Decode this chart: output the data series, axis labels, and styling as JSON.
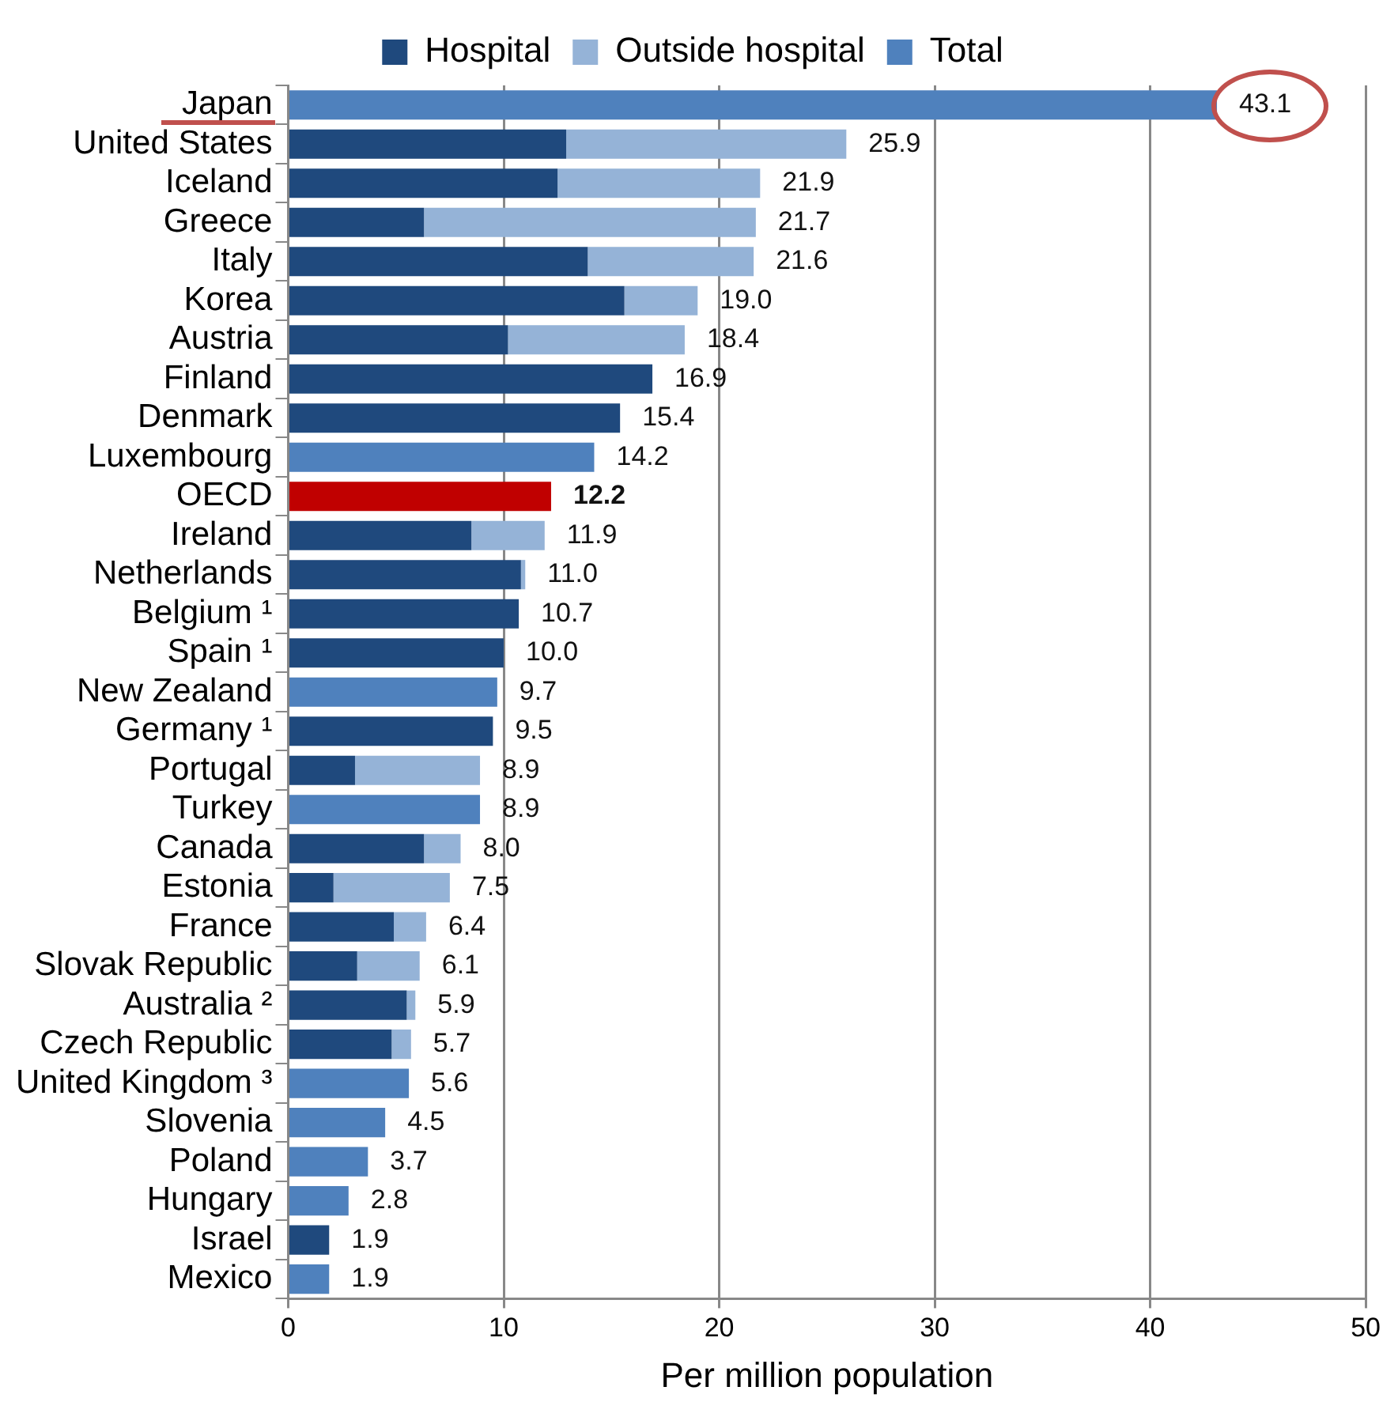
{
  "chart_data": {
    "type": "bar",
    "orientation": "horizontal",
    "stacked": true,
    "xlabel": "Per million population",
    "categories": [
      "Japan",
      "United States",
      "Iceland",
      "Greece",
      "Italy",
      "Korea",
      "Austria",
      "Finland",
      "Denmark",
      "Luxembourg",
      "OECD",
      "Ireland",
      "Netherlands",
      "Belgium ¹",
      "Spain ¹",
      "New Zealand",
      "Germany ¹",
      "Portugal",
      "Turkey",
      "Canada",
      "Estonia",
      "France",
      "Slovak Republic",
      "Australia ²",
      "Czech Republic",
      "United Kingdom ³",
      "Slovenia",
      "Poland",
      "Hungary",
      "Israel",
      "Mexico"
    ],
    "series": [
      {
        "name": "Hospital",
        "color": "#1f497d",
        "values": [
          null,
          12.9,
          12.5,
          6.3,
          13.9,
          15.6,
          10.2,
          16.9,
          15.4,
          null,
          null,
          8.5,
          10.8,
          10.7,
          10.0,
          null,
          9.5,
          3.1,
          null,
          6.3,
          2.1,
          4.9,
          3.2,
          5.5,
          4.8,
          null,
          null,
          null,
          null,
          1.9,
          null
        ]
      },
      {
        "name": "Outside hospital",
        "color": "#95b3d7",
        "values": [
          null,
          13.0,
          9.4,
          15.4,
          7.7,
          3.4,
          8.2,
          null,
          null,
          null,
          null,
          3.4,
          0.2,
          null,
          null,
          null,
          null,
          5.8,
          null,
          1.7,
          5.4,
          1.5,
          2.9,
          0.4,
          0.9,
          null,
          null,
          null,
          null,
          null,
          null
        ]
      },
      {
        "name": "Total",
        "color": "#4f81bd",
        "colors": [
          "#4f81bd",
          "#4f81bd",
          "#4f81bd",
          "#4f81bd",
          "#4f81bd",
          "#4f81bd",
          "#4f81bd",
          "#4f81bd",
          "#4f81bd",
          "#4f81bd",
          "#c00000",
          "#4f81bd",
          "#4f81bd",
          "#4f81bd",
          "#4f81bd",
          "#4f81bd",
          "#4f81bd",
          "#4f81bd",
          "#4f81bd",
          "#4f81bd",
          "#4f81bd",
          "#4f81bd",
          "#4f81bd",
          "#4f81bd",
          "#4f81bd",
          "#4f81bd",
          "#4f81bd",
          "#4f81bd",
          "#4f81bd",
          "#4f81bd",
          "#4f81bd"
        ],
        "values": [
          43.1,
          null,
          null,
          null,
          null,
          null,
          null,
          null,
          null,
          14.2,
          12.2,
          null,
          null,
          null,
          null,
          9.7,
          null,
          null,
          8.9,
          null,
          null,
          null,
          null,
          null,
          null,
          5.6,
          4.5,
          3.7,
          2.8,
          null,
          1.9
        ]
      }
    ],
    "totals": [
      "43.1",
      "25.9",
      "21.9",
      "21.7",
      "21.6",
      "19.0",
      "18.4",
      "16.9",
      "15.4",
      "14.2",
      "12.2",
      "11.9",
      "11.0",
      "10.7",
      "10.0",
      "9.7",
      "9.5",
      "8.9",
      "8.9",
      "8.0",
      "7.5",
      "6.4",
      "6.1",
      "5.9",
      "5.7",
      "5.6",
      "4.5",
      "3.7",
      "2.8",
      "1.9",
      "1.9"
    ],
    "xlim": [
      0,
      50
    ],
    "xticks": [
      0,
      10,
      20,
      30,
      40,
      50
    ],
    "grid": "x",
    "legend": "top"
  }
}
